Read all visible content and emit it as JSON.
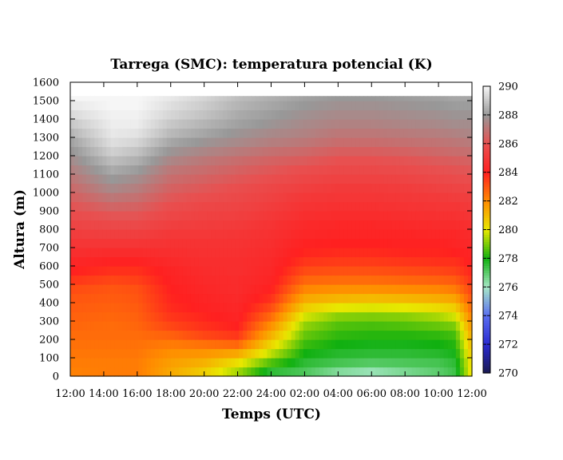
{
  "chart_data": {
    "type": "heatmap",
    "title": "Tarrega (SMC): temperatura potencial (K)",
    "xlabel": "Temps (UTC)",
    "ylabel": "Altura (m)",
    "x_ticks": [
      "12:00",
      "14:00",
      "16:00",
      "18:00",
      "20:00",
      "22:00",
      "24:00",
      "02:00",
      "04:00",
      "06:00",
      "08:00",
      "10:00",
      "12:00"
    ],
    "x_range_hours": [
      12,
      36
    ],
    "ylim": [
      0,
      1600
    ],
    "y_ticks": [
      0,
      100,
      200,
      300,
      400,
      500,
      600,
      700,
      800,
      900,
      1000,
      1100,
      1200,
      1300,
      1400,
      1500,
      1600
    ],
    "data_top_m": 1525,
    "colorbar": {
      "min": 270,
      "max": 290,
      "ticks": [
        270,
        272,
        274,
        276,
        278,
        280,
        282,
        284,
        286,
        288,
        290
      ],
      "stops": [
        {
          "value": 270,
          "color": "#1a1a50"
        },
        {
          "value": 272,
          "color": "#2a2ad0"
        },
        {
          "value": 274,
          "color": "#5a6ef0"
        },
        {
          "value": 276,
          "color": "#a8e8c8"
        },
        {
          "value": 278,
          "color": "#10b010"
        },
        {
          "value": 280,
          "color": "#e8e800"
        },
        {
          "value": 282,
          "color": "#ff8c00"
        },
        {
          "value": 284,
          "color": "#ff2020"
        },
        {
          "value": 286,
          "color": "#e85050"
        },
        {
          "value": 288,
          "color": "#989898"
        },
        {
          "value": 290,
          "color": "#f6f6f6"
        }
      ]
    },
    "heights_m": [
      25,
      75,
      125,
      175,
      225,
      275,
      325,
      375,
      425,
      475,
      525,
      575,
      625,
      675,
      725,
      775,
      825,
      875,
      925,
      975,
      1025,
      1075,
      1125,
      1175,
      1225,
      1275,
      1325,
      1375,
      1425,
      1475,
      1525
    ],
    "profiles": [
      {
        "hour": 12,
        "theta": [
          282.2,
          282.3,
          282.4,
          282.5,
          282.6,
          282.7,
          282.8,
          282.9,
          283.0,
          283.2,
          283.6,
          284.0,
          284.3,
          284.6,
          284.9,
          285.2,
          285.5,
          285.8,
          286.1,
          286.4,
          286.7,
          287.0,
          287.3,
          287.6,
          287.9,
          288.2,
          288.6,
          289.0,
          289.4,
          289.7,
          290.0
        ]
      },
      {
        "hour": 14.5,
        "theta": [
          282.3,
          282.3,
          282.4,
          282.5,
          282.6,
          282.6,
          282.7,
          282.8,
          282.9,
          283.0,
          283.3,
          283.7,
          284.1,
          284.5,
          284.9,
          285.3,
          285.7,
          286.1,
          286.6,
          287.1,
          287.6,
          288.0,
          288.4,
          288.8,
          289.2,
          289.5,
          289.7,
          289.8,
          289.9,
          290.0,
          290.0
        ]
      },
      {
        "hour": 16,
        "theta": [
          282.3,
          282.3,
          282.4,
          282.5,
          282.6,
          282.7,
          282.8,
          282.9,
          283.0,
          283.1,
          283.4,
          283.7,
          284.1,
          284.5,
          284.9,
          285.3,
          285.7,
          286.1,
          286.5,
          286.9,
          287.3,
          287.7,
          288.1,
          288.5,
          288.9,
          289.3,
          289.6,
          289.8,
          289.9,
          290.0,
          290.0
        ]
      },
      {
        "hour": 18,
        "theta": [
          281.4,
          281.6,
          281.9,
          282.3,
          282.8,
          283.3,
          283.6,
          283.8,
          283.9,
          284.0,
          284.1,
          284.2,
          284.4,
          284.6,
          284.8,
          285.0,
          285.3,
          285.6,
          285.9,
          286.2,
          286.5,
          286.8,
          287.1,
          287.5,
          287.9,
          288.3,
          288.7,
          289.0,
          289.3,
          289.5,
          289.7
        ]
      },
      {
        "hour": 20,
        "theta": [
          280.6,
          281.2,
          281.8,
          282.5,
          283.3,
          283.7,
          283.9,
          284.1,
          284.2,
          284.3,
          284.4,
          284.5,
          284.6,
          284.7,
          284.8,
          285.0,
          285.2,
          285.4,
          285.6,
          285.9,
          286.2,
          286.5,
          286.8,
          287.1,
          287.5,
          287.9,
          288.3,
          288.6,
          288.9,
          289.1,
          289.3
        ]
      },
      {
        "hour": 22,
        "theta": [
          279.4,
          280.2,
          281.4,
          282.7,
          283.6,
          284.0,
          284.2,
          284.3,
          284.4,
          284.5,
          284.5,
          284.6,
          284.6,
          284.7,
          284.8,
          284.9,
          285.1,
          285.3,
          285.5,
          285.7,
          285.9,
          286.2,
          286.5,
          286.8,
          287.2,
          287.6,
          287.9,
          288.2,
          288.4,
          288.6,
          288.8
        ]
      },
      {
        "hour": 24,
        "theta": [
          277.6,
          278.6,
          279.6,
          280.4,
          281.2,
          281.9,
          282.6,
          283.2,
          283.7,
          284.0,
          284.2,
          284.3,
          284.4,
          284.5,
          284.6,
          284.7,
          284.8,
          285.0,
          285.2,
          285.4,
          285.6,
          285.9,
          286.2,
          286.5,
          286.9,
          287.3,
          287.6,
          287.9,
          288.1,
          288.3,
          288.5
        ]
      },
      {
        "hour": 26,
        "theta": [
          277.2,
          277.6,
          278.0,
          278.4,
          278.8,
          279.2,
          279.8,
          280.6,
          281.4,
          282.1,
          282.7,
          283.2,
          283.6,
          283.9,
          284.1,
          284.3,
          284.4,
          284.6,
          284.8,
          285.0,
          285.3,
          285.6,
          285.9,
          286.3,
          286.7,
          287.1,
          287.4,
          287.6,
          287.8,
          288.0,
          288.2
        ]
      },
      {
        "hour": 28,
        "theta": [
          276.5,
          277.3,
          277.7,
          278.0,
          278.3,
          278.6,
          279.1,
          280.0,
          281.1,
          281.9,
          282.6,
          283.1,
          283.5,
          283.8,
          284.0,
          284.2,
          284.3,
          284.5,
          284.7,
          284.9,
          285.1,
          285.4,
          285.7,
          286.0,
          286.4,
          286.8,
          287.1,
          287.4,
          287.6,
          287.8,
          288.0
        ]
      },
      {
        "hour": 30,
        "theta": [
          276.2,
          277.1,
          277.6,
          277.9,
          278.2,
          278.5,
          279.0,
          279.9,
          281.0,
          281.9,
          282.6,
          283.1,
          283.5,
          283.8,
          284.0,
          284.2,
          284.3,
          284.5,
          284.7,
          284.9,
          285.1,
          285.4,
          285.7,
          286.0,
          286.4,
          286.8,
          287.1,
          287.4,
          287.6,
          287.8,
          288.0
        ]
      },
      {
        "hour": 32,
        "theta": [
          276.6,
          277.2,
          277.6,
          277.9,
          278.2,
          278.6,
          279.1,
          280.0,
          281.1,
          282.0,
          282.7,
          283.2,
          283.6,
          283.9,
          284.1,
          284.2,
          284.4,
          284.6,
          284.8,
          285.0,
          285.2,
          285.5,
          285.8,
          286.1,
          286.5,
          286.9,
          287.2,
          287.5,
          287.7,
          287.9,
          288.1
        ]
      },
      {
        "hour": 34,
        "theta": [
          277.0,
          277.3,
          277.7,
          278.0,
          278.3,
          278.8,
          279.4,
          280.3,
          281.3,
          282.1,
          282.8,
          283.3,
          283.7,
          283.9,
          284.1,
          284.3,
          284.5,
          284.7,
          284.9,
          285.1,
          285.4,
          285.7,
          286.0,
          286.3,
          286.7,
          287.0,
          287.3,
          287.6,
          287.8,
          288.0,
          288.2
        ]
      },
      {
        "hour": 35,
        "theta": [
          277.4,
          277.6,
          277.9,
          278.2,
          278.5,
          279.0,
          279.8,
          280.6,
          281.5,
          282.3,
          282.9,
          283.4,
          283.7,
          284.0,
          284.2,
          284.3,
          284.5,
          284.7,
          284.9,
          285.2,
          285.5,
          285.8,
          286.1,
          286.4,
          286.8,
          287.1,
          287.4,
          287.7,
          287.9,
          288.1,
          288.3
        ]
      },
      {
        "hour": 36,
        "theta": [
          280.4,
          280.5,
          280.8,
          281.1,
          281.5,
          281.9,
          282.3,
          282.7,
          283.1,
          283.4,
          283.7,
          283.9,
          284.1,
          284.2,
          284.4,
          284.5,
          284.7,
          284.9,
          285.1,
          285.3,
          285.6,
          285.9,
          286.2,
          286.5,
          286.9,
          287.2,
          287.5,
          287.7,
          287.9,
          288.1,
          288.3
        ]
      }
    ]
  }
}
